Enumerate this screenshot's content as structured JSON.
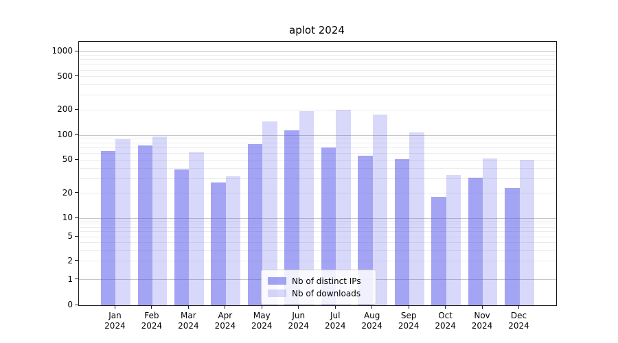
{
  "title": "aplot 2024",
  "legend": {
    "items": [
      {
        "label": "Nb of distinct IPs",
        "color_key": "ips_fill"
      },
      {
        "label": "Nb of downloads",
        "color_key": "downloads_fill"
      }
    ]
  },
  "colors": {
    "ips_fill": "rgba(90,90,235,0.55)",
    "downloads_fill": "rgba(90,90,235,0.24)",
    "grid_major": "#c6c6c6",
    "grid_minor": "#ebebeb",
    "spine": "#1a1a1a"
  },
  "chart_data": {
    "type": "bar",
    "title": "aplot 2024",
    "categories": [
      "Jan 2024",
      "Feb 2024",
      "Mar 2024",
      "Apr 2024",
      "May 2024",
      "Jun 2024",
      "Jul 2024",
      "Aug 2024",
      "Sep 2024",
      "Oct 2024",
      "Nov 2024",
      "Dec 2024"
    ],
    "series": [
      {
        "name": "Nb of distinct IPs",
        "values": [
          65,
          75,
          39,
          27,
          78,
          114,
          71,
          56,
          51,
          18,
          31,
          23
        ]
      },
      {
        "name": "Nb of downloads",
        "values": [
          90,
          97,
          62,
          32,
          147,
          195,
          200,
          175,
          108,
          33,
          52,
          50
        ]
      }
    ],
    "xlabel": "",
    "ylabel": "",
    "yscale": "symlog-like",
    "yticks": [
      0,
      1,
      2,
      5,
      10,
      20,
      50,
      100,
      200,
      500,
      1000
    ],
    "ylim": [
      0,
      1300
    ],
    "grid": true,
    "legend_position": "lower center",
    "scale_anchor_fractions": {
      "0": 1.0,
      "1": 0.9036,
      "10": 0.6693,
      "100": 0.3542,
      "1000": 0.0365
    }
  }
}
